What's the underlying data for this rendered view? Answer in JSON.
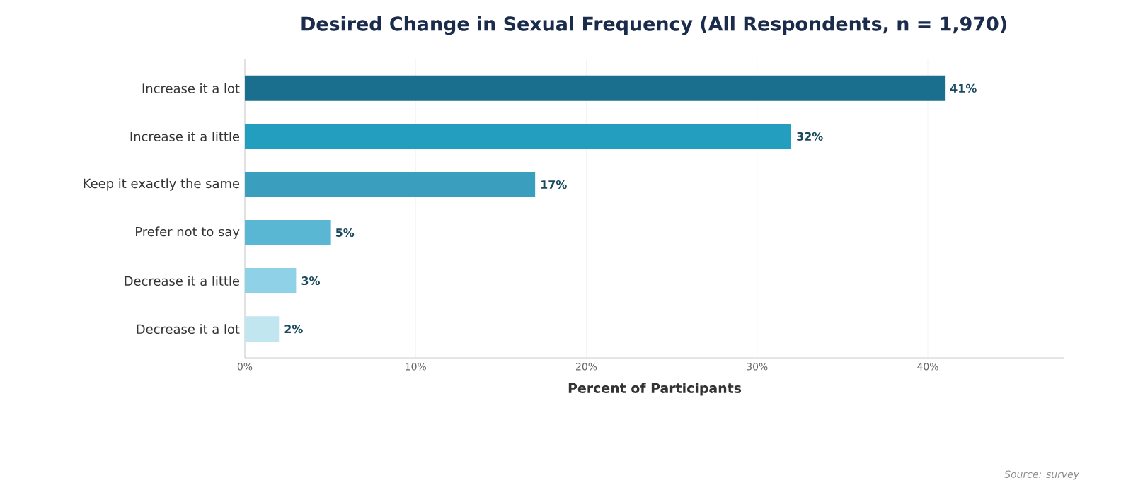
{
  "chart_data": {
    "type": "bar",
    "orientation": "horizontal",
    "title": "Desired Change in Sexual Frequency (All Respondents, n = 1,970)",
    "xlabel": "Percent of Participants",
    "categories": [
      "Increase it a lot",
      "Increase it a little",
      "Keep it exactly the same",
      "Prefer not to say",
      "Decrease it a little",
      "Decrease it a lot"
    ],
    "values": [
      41,
      32,
      17,
      5,
      3,
      2
    ],
    "colors": [
      "#1b6f8e",
      "#239ebf",
      "#3a9fbf",
      "#5ab7d3",
      "#8fd1e6",
      "#c2e6f0"
    ],
    "value_labels": [
      "41%",
      "32%",
      "17%",
      "5%",
      "3%",
      "2%"
    ],
    "xlim": [
      0,
      48
    ],
    "xticks": [
      {
        "value": 0,
        "label": "0%"
      },
      {
        "value": 10,
        "label": "10%"
      },
      {
        "value": 20,
        "label": "20%"
      },
      {
        "value": 30,
        "label": "30%"
      },
      {
        "value": 40,
        "label": "40%"
      }
    ],
    "grid": "x",
    "annotations": [
      "Source: survey"
    ]
  }
}
